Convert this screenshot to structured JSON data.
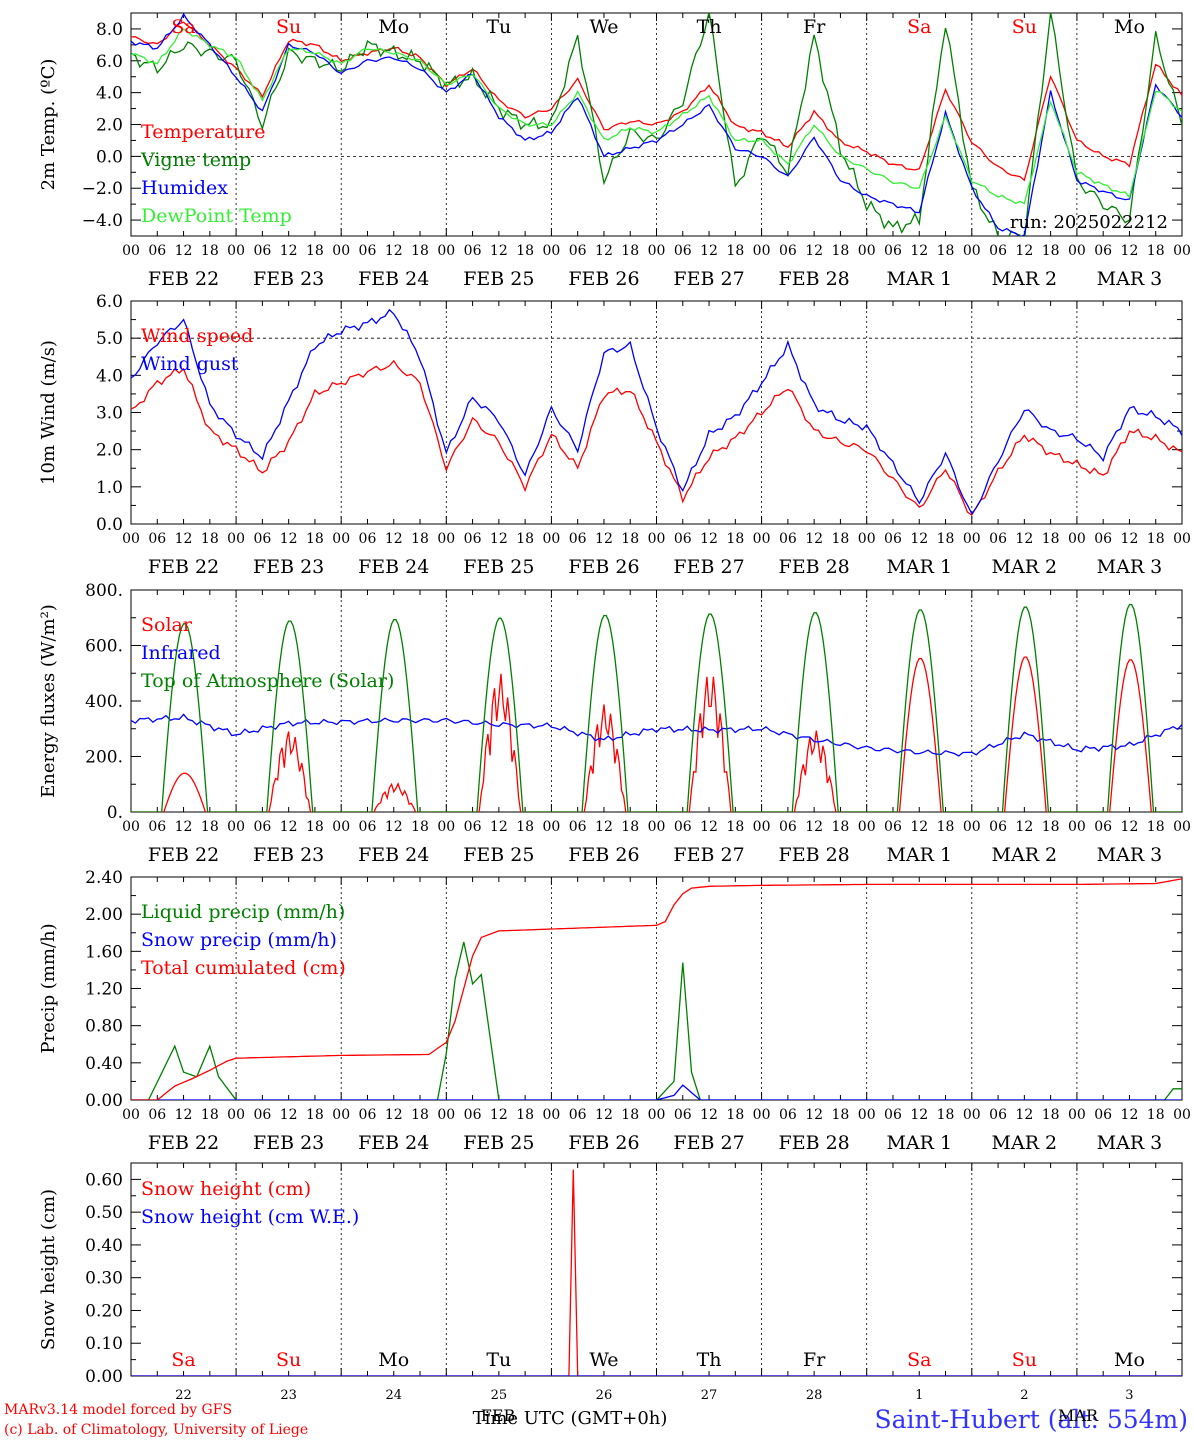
{
  "colors": {
    "temperature": "#ff0000",
    "vigne": "#008000",
    "humidex": "#0000ff",
    "dewpoint": "#33ee33",
    "axis": "#000000",
    "weekend": "#ff0000",
    "weekday": "#000000",
    "location": "#3333ff"
  },
  "hour_labels": [
    "00",
    "06",
    "12",
    "18"
  ],
  "date_labels": [
    "FEB 22",
    "FEB 23",
    "FEB 24",
    "FEB 25",
    "FEB 26",
    "FEB 27",
    "FEB 28",
    "MAR  1",
    "MAR  2",
    "MAR  3"
  ],
  "days": [
    {
      "label": "Sa",
      "weekend": true
    },
    {
      "label": "Su",
      "weekend": true
    },
    {
      "label": "Mo",
      "weekend": false
    },
    {
      "label": "Tu",
      "weekend": false
    },
    {
      "label": "We",
      "weekend": false
    },
    {
      "label": "Th",
      "weekend": false
    },
    {
      "label": "Fr",
      "weekend": false
    },
    {
      "label": "Sa",
      "weekend": true
    },
    {
      "label": "Su",
      "weekend": true
    },
    {
      "label": "Mo",
      "weekend": false
    }
  ],
  "footer": {
    "model": "MARv3.14 model forced by GFS",
    "credit": "(c) Lab. of Climatology, University of Liege",
    "xlabel": "Time UTC (GMT+0h)",
    "overlap_text": "FEB",
    "location": "Saint-Hubert (alt: 554m)",
    "mar_text": "MAR",
    "day_numbers": [
      "22",
      "23",
      "24",
      "25",
      "26",
      "27",
      "28",
      "1",
      "2",
      "3"
    ]
  },
  "chart_data": [
    {
      "type": "line",
      "ylabel": "2m Temp. (ºC)",
      "ylim": [
        -5,
        9
      ],
      "yticks": [
        -4,
        -2,
        0,
        2,
        4,
        6,
        8
      ],
      "ytick_labels": [
        "−4.0",
        "−2.0",
        "0.0",
        "2.0",
        "4.0",
        "6.0",
        "8.0"
      ],
      "ref_line": 0,
      "annotation": "run: 2025022212",
      "x": [
        0,
        6,
        12,
        18,
        24,
        30,
        36,
        42,
        48,
        54,
        60,
        66,
        72,
        78,
        84,
        90,
        96,
        102,
        108,
        114,
        120,
        126,
        132,
        138,
        144,
        150,
        156,
        162,
        168,
        174,
        180,
        186,
        192,
        198,
        204,
        210,
        216,
        222,
        228,
        234,
        240
      ],
      "series": [
        {
          "name": "Temperature",
          "color": "#ff0000",
          "values": [
            7.5,
            7.0,
            8.5,
            7.0,
            5.5,
            3.8,
            7.3,
            7.0,
            6.0,
            6.5,
            6.8,
            6.2,
            4.5,
            5.5,
            3.5,
            2.5,
            3.0,
            4.8,
            1.7,
            2.2,
            2.0,
            2.8,
            4.5,
            1.9,
            1.5,
            0.6,
            2.8,
            0.9,
            0.3,
            -0.5,
            -0.9,
            4.2,
            0.9,
            -0.7,
            -1.5,
            5.1,
            1.0,
            0.0,
            -0.5,
            5.8,
            3.8
          ]
        },
        {
          "name": "Vigne temp",
          "color": "#008000",
          "values": [
            6.3,
            5.5,
            7.0,
            6.5,
            6.0,
            2.0,
            6.5,
            6.0,
            5.5,
            7.0,
            6.5,
            6.0,
            4.5,
            5.0,
            3.0,
            2.0,
            2.0,
            7.5,
            -1.5,
            1.5,
            1.0,
            3.5,
            9.0,
            -2.0,
            1.5,
            -1.0,
            7.5,
            0.5,
            -3.0,
            -4.5,
            -4.0,
            8.5,
            -2.0,
            -5.0,
            -5.0,
            9.0,
            -1.5,
            -3.0,
            -4.0,
            7.5,
            2.0
          ]
        },
        {
          "name": "Humidex",
          "color": "#0000ff",
          "values": [
            7.2,
            6.8,
            8.8,
            7.0,
            5.0,
            2.8,
            7.0,
            6.5,
            5.2,
            6.0,
            6.2,
            5.5,
            4.0,
            5.2,
            2.5,
            1.0,
            1.5,
            3.8,
            0.0,
            0.5,
            1.0,
            2.0,
            3.2,
            0.5,
            0.0,
            -1.3,
            1.2,
            -1.5,
            -2.5,
            -3.0,
            -3.5,
            2.7,
            -2.0,
            -4.5,
            -5.0,
            4.0,
            -1.5,
            -2.2,
            -2.8,
            4.5,
            2.5
          ]
        },
        {
          "name": "DewPoint Temp",
          "color": "#33ee33",
          "values": [
            6.5,
            5.8,
            8.0,
            7.0,
            6.2,
            3.5,
            6.8,
            6.5,
            5.8,
            6.8,
            6.5,
            6.0,
            4.5,
            5.2,
            3.0,
            2.0,
            2.0,
            4.0,
            1.0,
            1.8,
            1.5,
            2.6,
            3.8,
            1.0,
            1.0,
            -0.5,
            2.0,
            0.0,
            -0.8,
            -1.6,
            -2.0,
            2.5,
            -1.5,
            -2.5,
            -3.0,
            3.5,
            -1.0,
            -1.8,
            -2.5,
            4.2,
            2.8
          ]
        }
      ]
    },
    {
      "type": "line",
      "ylabel": "10m Wind (m/s)",
      "ylim": [
        0,
        6
      ],
      "yticks": [
        0,
        1,
        2,
        3,
        4,
        5,
        6
      ],
      "ytick_labels": [
        "0.0",
        "1.0",
        "2.0",
        "3.0",
        "4.0",
        "5.0",
        "6.0"
      ],
      "ref_line": 5,
      "x": [
        0,
        6,
        12,
        18,
        24,
        30,
        36,
        42,
        48,
        54,
        60,
        66,
        72,
        78,
        84,
        90,
        96,
        102,
        108,
        114,
        120,
        126,
        132,
        138,
        144,
        150,
        156,
        162,
        168,
        174,
        180,
        186,
        192,
        198,
        204,
        210,
        216,
        222,
        228,
        234,
        240
      ],
      "series": [
        {
          "name": "Wind speed",
          "color": "#ff0000",
          "values": [
            3.0,
            3.8,
            4.2,
            2.5,
            2.0,
            1.4,
            2.2,
            3.5,
            3.8,
            4.1,
            4.3,
            3.8,
            1.5,
            2.8,
            2.2,
            1.0,
            2.4,
            1.5,
            3.5,
            3.6,
            2.2,
            0.7,
            1.8,
            2.3,
            3.0,
            3.7,
            2.5,
            2.2,
            2.0,
            1.2,
            0.4,
            1.5,
            0.2,
            1.4,
            2.4,
            1.9,
            1.6,
            1.3,
            2.5,
            2.3,
            1.9
          ]
        },
        {
          "name": "Wind gust",
          "color": "#0000ff",
          "values": [
            3.9,
            4.9,
            5.5,
            3.2,
            2.4,
            1.8,
            3.3,
            4.8,
            5.2,
            5.4,
            5.7,
            4.5,
            1.9,
            3.4,
            2.8,
            1.3,
            3.1,
            2.0,
            4.6,
            4.8,
            2.6,
            0.9,
            2.4,
            2.9,
            3.8,
            4.8,
            3.2,
            2.8,
            2.6,
            1.6,
            0.6,
            1.9,
            0.2,
            1.7,
            3.1,
            2.5,
            2.3,
            1.8,
            3.1,
            2.9,
            2.5
          ]
        }
      ]
    },
    {
      "type": "line",
      "ylabel": "Energy fluxes (W/m²)",
      "ylim": [
        0,
        800
      ],
      "yticks": [
        0,
        200,
        400,
        600,
        800
      ],
      "ytick_labels": [
        "0.",
        "200.",
        "400.",
        "600.",
        "800."
      ],
      "series": [
        {
          "name": "Solar",
          "color": "#ff0000",
          "peaks": [
            140,
            295,
            105,
            500,
            390,
            505,
            295,
            555,
            560,
            550
          ]
        },
        {
          "name": "Infrared",
          "color": "#0000ff",
          "x": [
            0,
            12,
            24,
            36,
            48,
            60,
            72,
            84,
            96,
            108,
            120,
            132,
            144,
            156,
            168,
            180,
            192,
            204,
            216,
            228,
            240
          ],
          "values": [
            330,
            340,
            280,
            320,
            325,
            330,
            330,
            315,
            310,
            260,
            300,
            295,
            300,
            260,
            230,
            215,
            210,
            280,
            225,
            240,
            315
          ]
        },
        {
          "name": "Top of Atmosphere (Solar)",
          "color": "#008000",
          "peaks": [
            680,
            690,
            695,
            700,
            710,
            715,
            720,
            730,
            740,
            750
          ]
        }
      ]
    },
    {
      "type": "line",
      "ylabel": "Precip (mm/h)",
      "ylim": [
        0,
        2.4
      ],
      "yticks": [
        0,
        0.4,
        0.8,
        1.2,
        1.6,
        2.0,
        2.4
      ],
      "ytick_labels": [
        "0.00",
        "0.40",
        "0.80",
        "1.20",
        "1.60",
        "2.00",
        "2.40"
      ],
      "series": [
        {
          "name": "Liquid precip (mm/h)",
          "color": "#008000",
          "x": [
            0,
            4,
            10,
            12,
            15,
            18,
            20,
            24,
            70,
            72,
            74,
            76,
            78,
            80,
            84,
            120,
            124,
            126,
            128,
            130,
            236,
            238,
            240
          ],
          "values": [
            0,
            0,
            0.58,
            0.3,
            0.25,
            0.58,
            0.25,
            0,
            0,
            0.5,
            1.3,
            1.7,
            1.25,
            1.35,
            0,
            0,
            0.2,
            1.48,
            0.3,
            0,
            0,
            0.12,
            0.12
          ]
        },
        {
          "name": "Snow precip (mm/h)",
          "color": "#0000ff",
          "x": [
            0,
            120,
            124,
            126,
            130,
            240
          ],
          "values": [
            0,
            0,
            0.05,
            0.16,
            0,
            0
          ]
        },
        {
          "name": "Total cumulated (cm)",
          "color": "#ff0000",
          "x": [
            0,
            6,
            10,
            14,
            18,
            22,
            24,
            48,
            68,
            72,
            74,
            76,
            78,
            80,
            84,
            96,
            108,
            120,
            122,
            124,
            126,
            128,
            132,
            144,
            168,
            192,
            216,
            234,
            240
          ],
          "values": [
            0,
            0,
            0.15,
            0.23,
            0.32,
            0.42,
            0.45,
            0.48,
            0.49,
            0.62,
            0.85,
            1.2,
            1.55,
            1.75,
            1.82,
            1.84,
            1.86,
            1.88,
            1.92,
            2.1,
            2.22,
            2.28,
            2.3,
            2.31,
            2.32,
            2.32,
            2.32,
            2.33,
            2.38
          ]
        }
      ]
    },
    {
      "type": "line",
      "ylabel": "Snow height (cm)",
      "ylim": [
        0,
        0.65
      ],
      "yticks": [
        0,
        0.1,
        0.2,
        0.3,
        0.4,
        0.5,
        0.6
      ],
      "ytick_labels": [
        "0.00",
        "0.10",
        "0.20",
        "0.30",
        "0.40",
        "0.50",
        "0.60"
      ],
      "series": [
        {
          "name": "Snow height (cm)",
          "color": "#ff0000",
          "x": [
            0,
            100,
            101,
            102,
            240
          ],
          "values": [
            0,
            0,
            0.63,
            0,
            0
          ]
        },
        {
          "name": "Snow height (cm W.E.)",
          "color": "#0000ff",
          "x": [
            0,
            240
          ],
          "values": [
            0,
            0
          ]
        }
      ]
    }
  ]
}
